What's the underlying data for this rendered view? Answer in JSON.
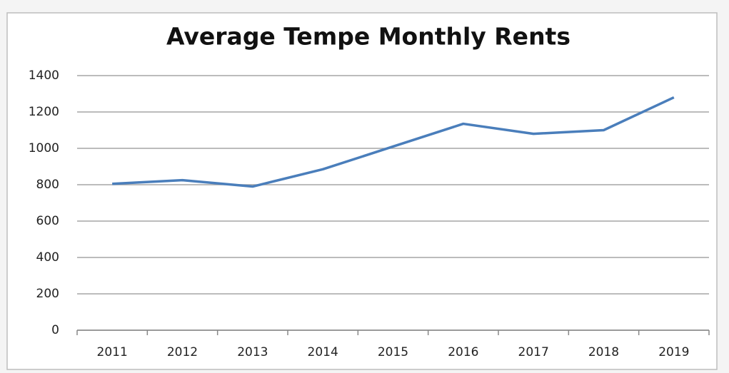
{
  "chart_data": {
    "type": "line",
    "title": "Average Tempe Monthly Rents",
    "categories": [
      "2011",
      "2012",
      "2013",
      "2014",
      "2015",
      "2016",
      "2017",
      "2018",
      "2019"
    ],
    "series": [
      {
        "name": "Average Tempe Monthly Rents",
        "color": "#4a7ebb",
        "values": [
          805,
          825,
          790,
          885,
          1010,
          1135,
          1080,
          1100,
          1280
        ]
      }
    ],
    "ylim": [
      0,
      1400
    ],
    "yticks": [
      0,
      200,
      400,
      600,
      800,
      1000,
      1200,
      1400
    ],
    "grid": true
  }
}
